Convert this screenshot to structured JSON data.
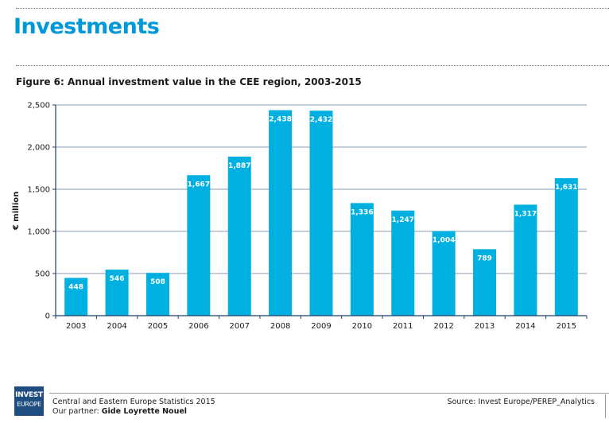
{
  "page": {
    "heading": "Investments",
    "figure_title": "Figure 6: Annual investment value in the CEE region, 2003-2015"
  },
  "footer": {
    "logo_line1": "INVEST",
    "logo_line2": "EUROPE",
    "report_title": "Central and Eastern Europe Statistics 2015",
    "partner_prefix": "Our partner:",
    "partner_name": "Gide Loyrette Nouel",
    "source": "Source: Invest Europe/PEREP_Analytics"
  },
  "colors": {
    "bar": "#00b0e0",
    "heading": "#0099d8",
    "axis": "#1f3f66",
    "logo_bg": "#1f4d7f"
  },
  "chart_data": {
    "type": "bar",
    "title": "Figure 6: Annual investment value in the CEE region, 2003-2015",
    "xlabel": "",
    "ylabel": "€ million",
    "ylim": [
      0,
      2500
    ],
    "yticks": [
      0,
      500,
      1000,
      1500,
      2000,
      2500
    ],
    "ytick_labels": [
      "0",
      "500",
      "1,000",
      "1,500",
      "2,000",
      "2,500"
    ],
    "grid": true,
    "categories": [
      "2003",
      "2004",
      "2005",
      "2006",
      "2007",
      "2008",
      "2009",
      "2010",
      "2011",
      "2012",
      "2013",
      "2014",
      "2015"
    ],
    "values": [
      448,
      546,
      508,
      1667,
      1887,
      2438,
      2432,
      1336,
      1247,
      1004,
      789,
      1317,
      1631
    ],
    "value_labels": [
      "448",
      "546",
      "508",
      "1,667",
      "1,887",
      "2,438",
      "2,432",
      "1,336",
      "1,247",
      "1,004",
      "789",
      "1,317",
      "1,631"
    ]
  }
}
